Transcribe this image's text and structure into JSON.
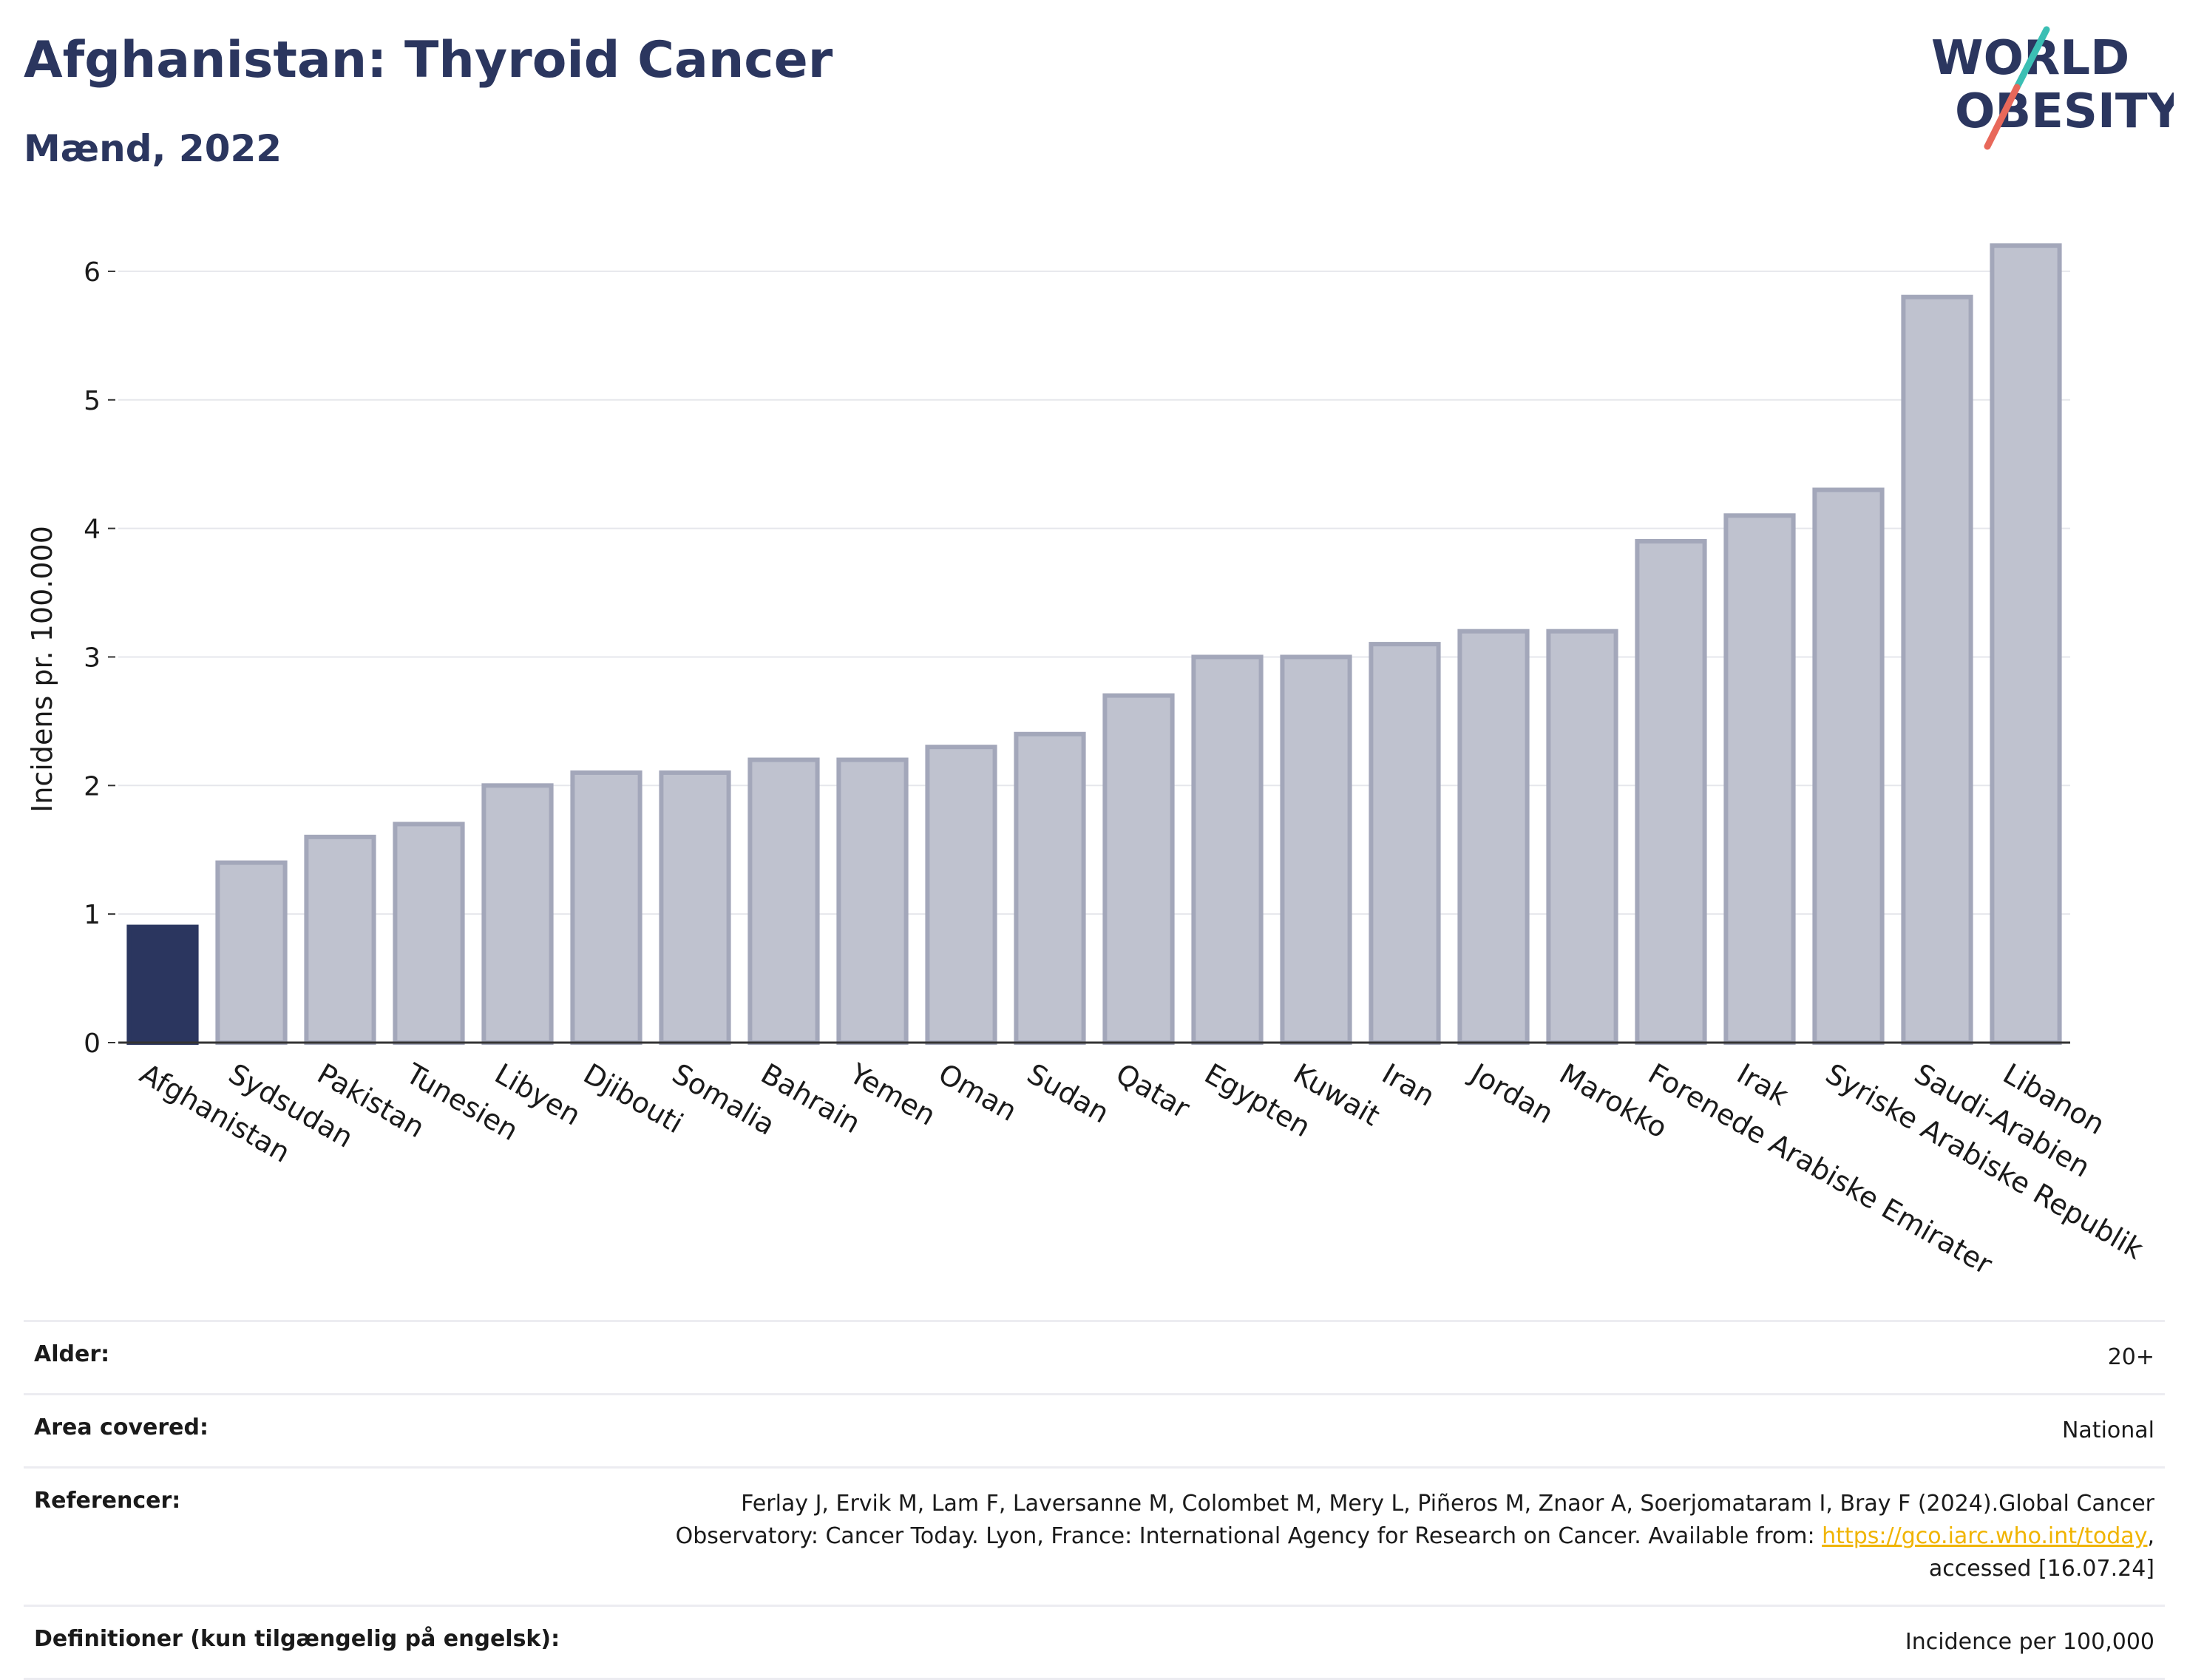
{
  "header": {
    "title": "Afghanistan: Thyroid Cancer",
    "subtitle": "Mænd, 2022"
  },
  "logo": {
    "line1": "WORLD",
    "line2": "OBESITY"
  },
  "chart_data": {
    "type": "bar",
    "ylabel": "Incidens pr. 100.000",
    "xlabel": "",
    "ylim": [
      0,
      6.5
    ],
    "yticks": [
      0,
      1,
      2,
      3,
      4,
      5,
      6
    ],
    "grid": true,
    "highlight": "Afghanistan",
    "highlight_color": "#2b365f",
    "bar_color": "#bfc2cf",
    "bar_edge_color": "#a3a7ba",
    "categories": [
      "Afghanistan",
      "Sydsudan",
      "Pakistan",
      "Tunesien",
      "Libyen",
      "Djibouti",
      "Somalia",
      "Bahrain",
      "Yemen",
      "Oman",
      "Sudan",
      "Qatar",
      "Egypten",
      "Kuwait",
      "Iran",
      "Jordan",
      "Marokko",
      "Forenede Arabiske Emirater",
      "Irak",
      "Syriske Arabiske Republik",
      "Saudi-Arabien",
      "Libanon"
    ],
    "values": [
      0.9,
      1.4,
      1.6,
      1.7,
      2.0,
      2.1,
      2.1,
      2.2,
      2.2,
      2.3,
      2.4,
      2.7,
      3.0,
      3.0,
      3.1,
      3.2,
      3.2,
      3.9,
      4.1,
      4.3,
      5.8,
      6.2
    ]
  },
  "info": {
    "age_label": "Alder:",
    "age_value": "20+",
    "area_label": "Area covered:",
    "area_value": "National",
    "ref_label": "Referencer:",
    "ref_text1": "Ferlay J, Ervik M, Lam F, Laversanne M, Colombet M, Mery L, Piñeros M, Znaor A, Soerjomataram I, Bray F (2024).Global Cancer Observatory: Cancer Today. Lyon, France: International Agency for Research on Cancer. Available from: ",
    "ref_link": "https://gco.iarc.who.int/today",
    "ref_text2": ", accessed [16.07.24]",
    "def_label": "Definitioner (kun tilgængelig på engelsk):",
    "def_value": "Incidence per 100,000"
  }
}
